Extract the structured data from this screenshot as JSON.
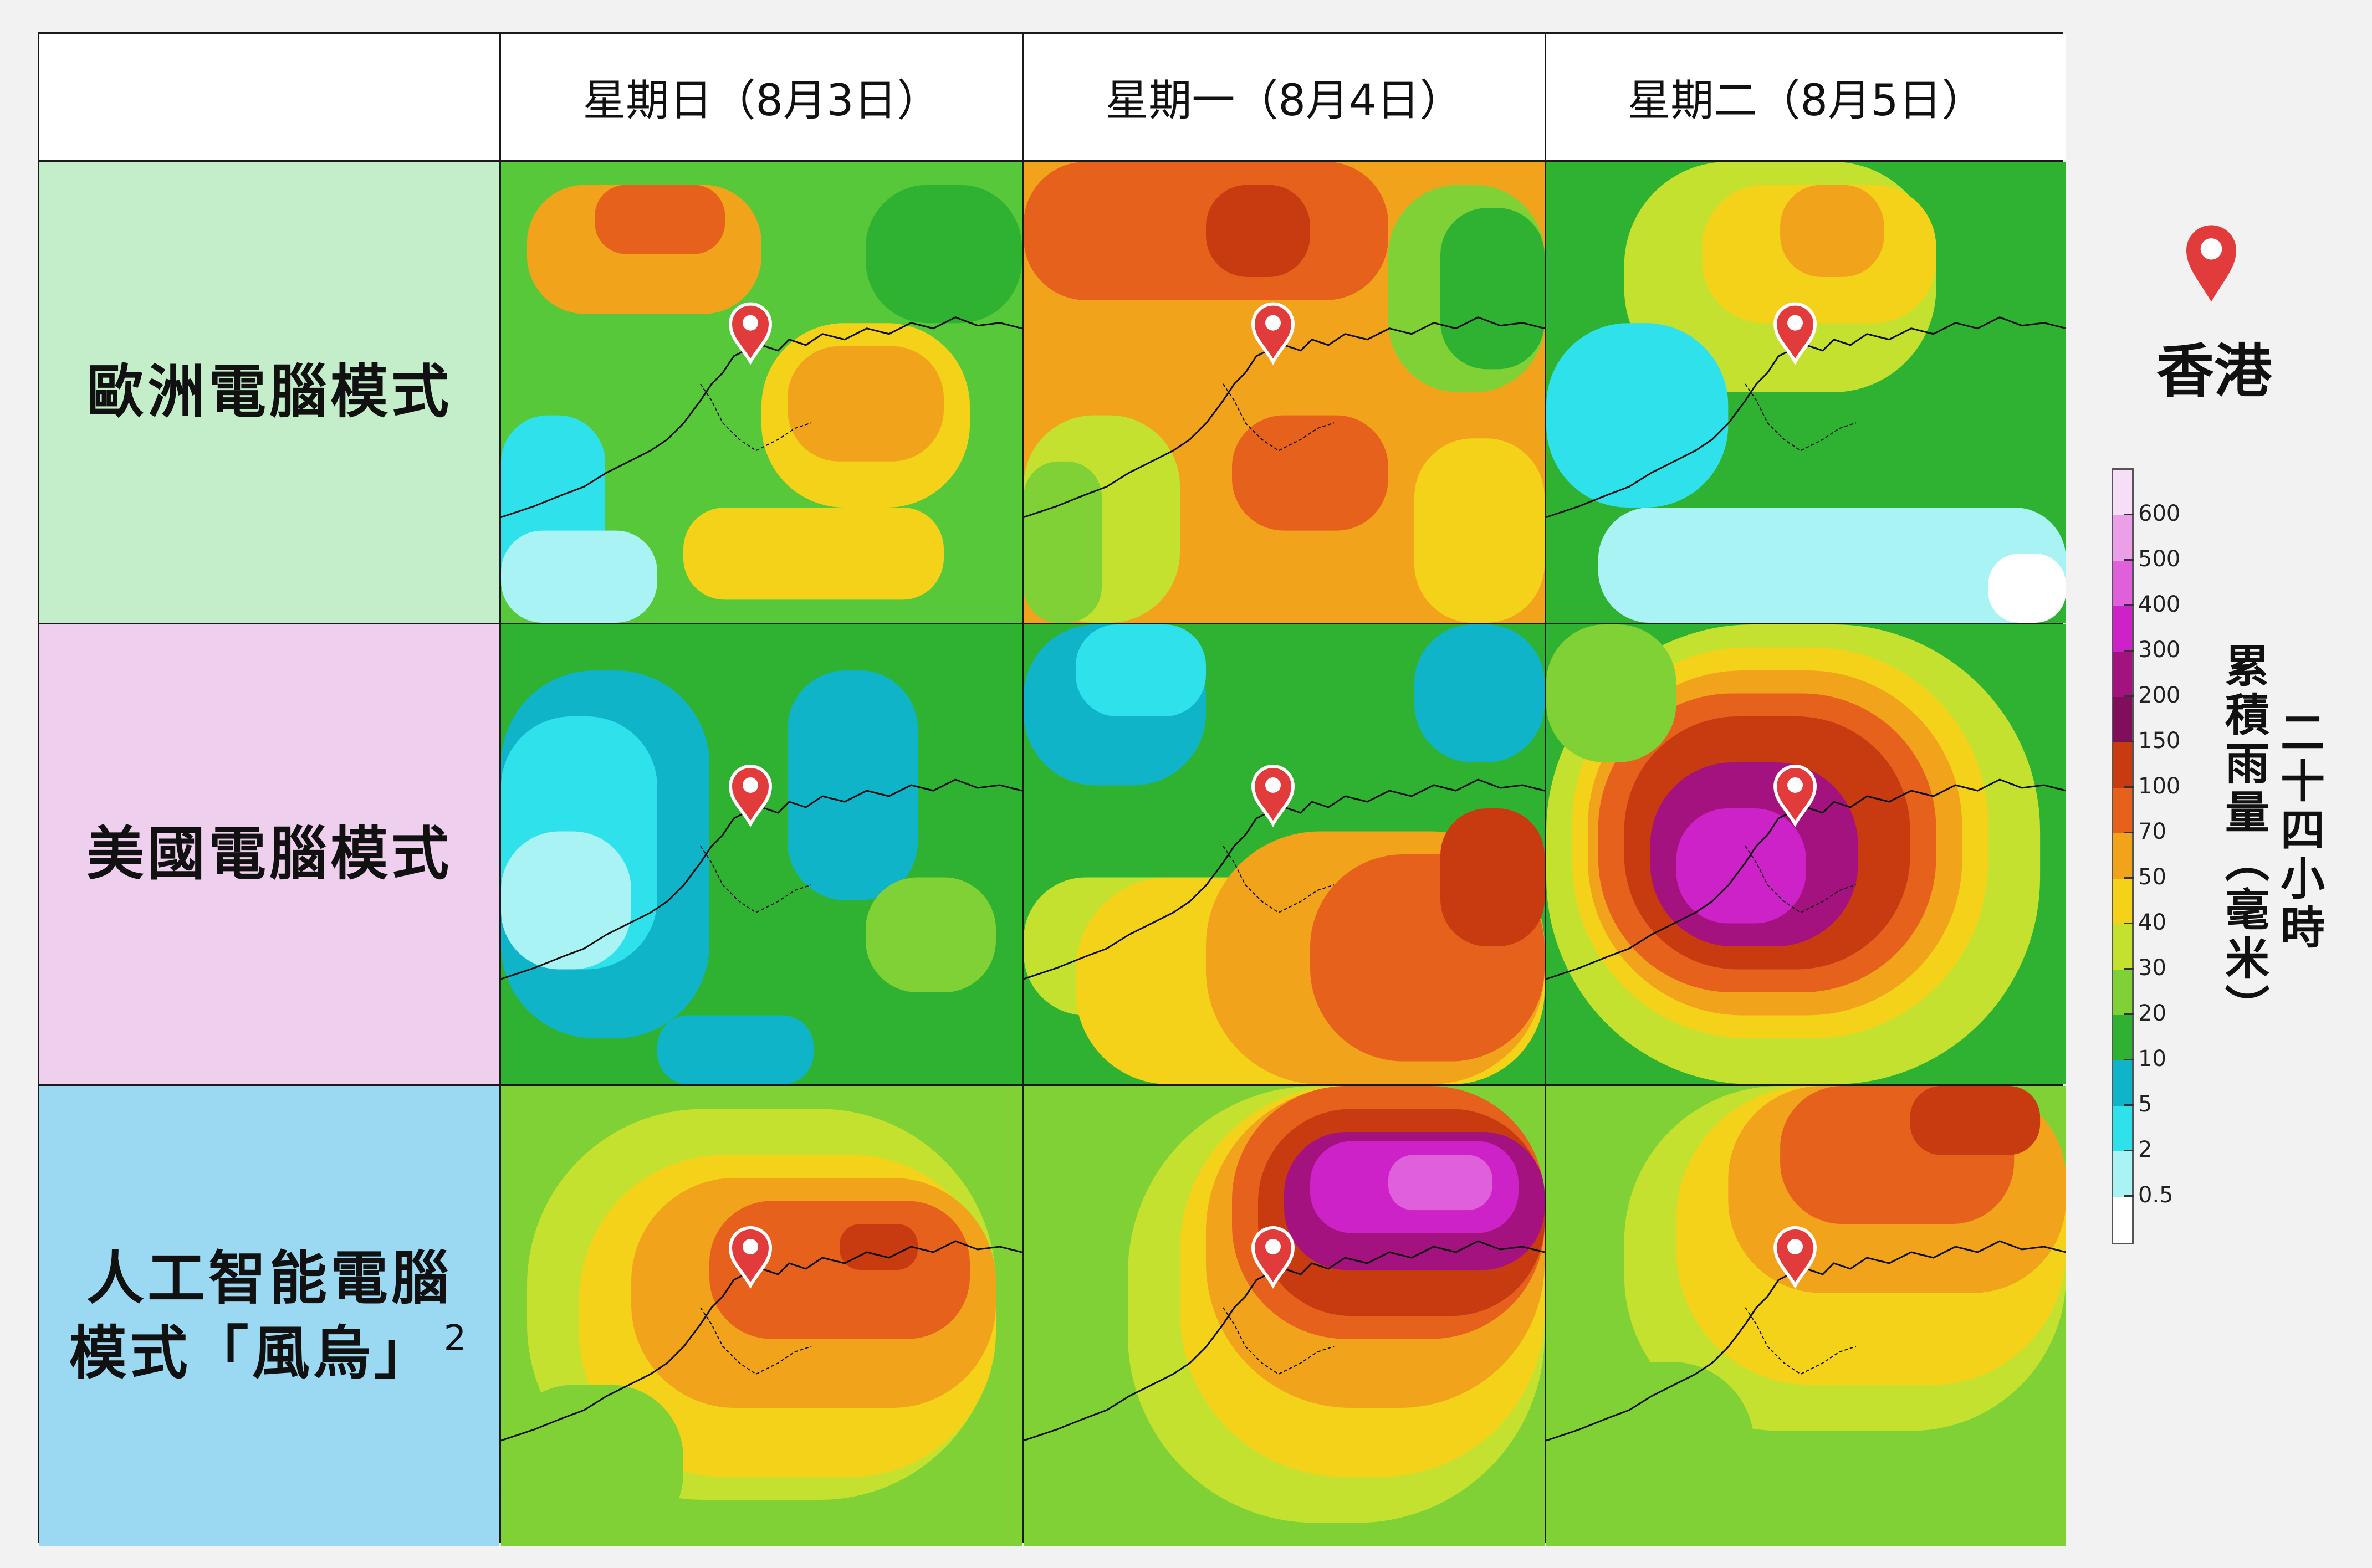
{
  "columns": [
    {
      "label": "星期日（8月3日）"
    },
    {
      "label": "星期一（8月4日）"
    },
    {
      "label": "星期二（8月5日）"
    }
  ],
  "rows": [
    {
      "label": "歐洲電腦模式",
      "color": "#c4edca"
    },
    {
      "label": "美國電腦模式",
      "color": "#eed0ee"
    },
    {
      "label_line1": "人工智能電腦",
      "label_line2": "模式「風烏」",
      "sup": "2",
      "color": "#9bd8f2"
    }
  ],
  "legend": {
    "place": "香港",
    "marker_color": "#e23b3b",
    "title_col1": "累積雨量（毫米）",
    "title_col2": "二十四小時",
    "ticks": [
      "600",
      "500",
      "400",
      "300",
      "200",
      "150",
      "100",
      "70",
      "50",
      "40",
      "30",
      "20",
      "10",
      "5",
      "2",
      "0.5"
    ],
    "colors": [
      "#f6dff6",
      "#ec9fe9",
      "#e060dc",
      "#cc22c8",
      "#a3127f",
      "#7f0f5a",
      "#c83a10",
      "#e5611c",
      "#f2a31c",
      "#f5d21a",
      "#c5e130",
      "#7fd136",
      "#2fb232",
      "#10b4c8",
      "#2ee1ea",
      "#a9f3f4",
      "#ffffff"
    ]
  },
  "maps": [
    {
      "scheme": "ecmwf-sun",
      "bg": "#57c83a",
      "blobs": [
        {
          "c": "#f2a31c",
          "r": [
            0.05,
            0.05,
            0.45,
            0.28
          ]
        },
        {
          "c": "#e5611c",
          "r": [
            0.18,
            0.05,
            0.25,
            0.15
          ]
        },
        {
          "c": "#f5d21a",
          "r": [
            0.5,
            0.35,
            0.4,
            0.4
          ]
        },
        {
          "c": "#f2a31c",
          "r": [
            0.55,
            0.4,
            0.3,
            0.25
          ]
        },
        {
          "c": "#2fb232",
          "r": [
            0.7,
            0.05,
            0.3,
            0.3
          ]
        },
        {
          "c": "#2ee1ea",
          "r": [
            0.0,
            0.55,
            0.2,
            0.45
          ]
        },
        {
          "c": "#a9f3f4",
          "r": [
            0.0,
            0.8,
            0.3,
            0.2
          ]
        },
        {
          "c": "#f5d21a",
          "r": [
            0.35,
            0.75,
            0.5,
            0.2
          ]
        }
      ]
    },
    {
      "scheme": "ecmwf-mon",
      "bg": "#f2a31c",
      "blobs": [
        {
          "c": "#e5611c",
          "r": [
            0.0,
            0.0,
            0.7,
            0.3
          ]
        },
        {
          "c": "#c83a10",
          "r": [
            0.35,
            0.05,
            0.2,
            0.2
          ]
        },
        {
          "c": "#7fd136",
          "r": [
            0.7,
            0.05,
            0.3,
            0.45
          ]
        },
        {
          "c": "#2fb232",
          "r": [
            0.8,
            0.1,
            0.2,
            0.35
          ]
        },
        {
          "c": "#c5e130",
          "r": [
            0.0,
            0.55,
            0.3,
            0.45
          ]
        },
        {
          "c": "#7fd136",
          "r": [
            0.0,
            0.65,
            0.15,
            0.35
          ]
        },
        {
          "c": "#e5611c",
          "r": [
            0.4,
            0.55,
            0.3,
            0.25
          ]
        },
        {
          "c": "#f5d21a",
          "r": [
            0.75,
            0.6,
            0.25,
            0.4
          ]
        }
      ]
    },
    {
      "scheme": "ecmwf-tue",
      "bg": "#2fb232",
      "blobs": [
        {
          "c": "#c5e130",
          "r": [
            0.15,
            0.0,
            0.6,
            0.5
          ]
        },
        {
          "c": "#f5d21a",
          "r": [
            0.3,
            0.05,
            0.45,
            0.3
          ]
        },
        {
          "c": "#f2a31c",
          "r": [
            0.45,
            0.05,
            0.2,
            0.2
          ]
        },
        {
          "c": "#2ee1ea",
          "r": [
            0.0,
            0.35,
            0.35,
            0.4
          ]
        },
        {
          "c": "#a9f3f4",
          "r": [
            0.1,
            0.75,
            0.9,
            0.25
          ]
        },
        {
          "c": "#ffffff",
          "r": [
            0.85,
            0.85,
            0.15,
            0.15
          ]
        }
      ]
    },
    {
      "scheme": "gfs-sun",
      "bg": "#2fb232",
      "blobs": [
        {
          "c": "#10b4c8",
          "r": [
            0.0,
            0.1,
            0.4,
            0.8
          ]
        },
        {
          "c": "#2ee1ea",
          "r": [
            0.0,
            0.2,
            0.3,
            0.55
          ]
        },
        {
          "c": "#a9f3f4",
          "r": [
            0.0,
            0.45,
            0.25,
            0.3
          ]
        },
        {
          "c": "#10b4c8",
          "r": [
            0.55,
            0.1,
            0.25,
            0.5
          ]
        },
        {
          "c": "#7fd136",
          "r": [
            0.7,
            0.55,
            0.25,
            0.25
          ]
        },
        {
          "c": "#10b4c8",
          "r": [
            0.3,
            0.85,
            0.3,
            0.15
          ]
        }
      ]
    },
    {
      "scheme": "gfs-mon",
      "bg": "#2fb232",
      "blobs": [
        {
          "c": "#10b4c8",
          "r": [
            0.0,
            0.0,
            0.35,
            0.35
          ]
        },
        {
          "c": "#2ee1ea",
          "r": [
            0.1,
            0.0,
            0.25,
            0.2
          ]
        },
        {
          "c": "#10b4c8",
          "r": [
            0.75,
            0.0,
            0.25,
            0.3
          ]
        },
        {
          "c": "#c5e130",
          "r": [
            0.0,
            0.55,
            0.6,
            0.3
          ]
        },
        {
          "c": "#f5d21a",
          "r": [
            0.1,
            0.55,
            0.9,
            0.45
          ]
        },
        {
          "c": "#f2a31c",
          "r": [
            0.35,
            0.45,
            0.65,
            0.55
          ]
        },
        {
          "c": "#e5611c",
          "r": [
            0.55,
            0.5,
            0.45,
            0.45
          ]
        },
        {
          "c": "#c83a10",
          "r": [
            0.8,
            0.4,
            0.2,
            0.3
          ]
        }
      ]
    },
    {
      "scheme": "gfs-tue",
      "bg": "#2fb232",
      "blobs": [
        {
          "c": "#c5e130",
          "r": [
            0.0,
            0.0,
            0.95,
            1.0
          ]
        },
        {
          "c": "#f5d21a",
          "r": [
            0.05,
            0.05,
            0.8,
            0.85
          ]
        },
        {
          "c": "#f2a31c",
          "r": [
            0.08,
            0.1,
            0.72,
            0.75
          ]
        },
        {
          "c": "#e5611c",
          "r": [
            0.1,
            0.15,
            0.65,
            0.65
          ]
        },
        {
          "c": "#c83a10",
          "r": [
            0.15,
            0.2,
            0.55,
            0.55
          ]
        },
        {
          "c": "#a3127f",
          "r": [
            0.2,
            0.3,
            0.4,
            0.4
          ]
        },
        {
          "c": "#cc22c8",
          "r": [
            0.25,
            0.4,
            0.25,
            0.25
          ]
        },
        {
          "c": "#7fd136",
          "r": [
            0.0,
            0.0,
            0.25,
            0.3
          ]
        }
      ]
    },
    {
      "scheme": "ai-sun",
      "bg": "#7fd136",
      "blobs": [
        {
          "c": "#c5e130",
          "r": [
            0.05,
            0.05,
            0.9,
            0.85
          ]
        },
        {
          "c": "#f5d21a",
          "r": [
            0.15,
            0.15,
            0.8,
            0.7
          ]
        },
        {
          "c": "#f2a31c",
          "r": [
            0.25,
            0.2,
            0.7,
            0.5
          ]
        },
        {
          "c": "#e5611c",
          "r": [
            0.4,
            0.25,
            0.5,
            0.3
          ]
        },
        {
          "c": "#c83a10",
          "r": [
            0.65,
            0.3,
            0.15,
            0.1
          ]
        },
        {
          "c": "#7fd136",
          "r": [
            0.0,
            0.65,
            0.35,
            0.35
          ]
        }
      ]
    },
    {
      "scheme": "ai-mon",
      "bg": "#7fd136",
      "blobs": [
        {
          "c": "#c5e130",
          "r": [
            0.2,
            0.0,
            0.8,
            0.95
          ]
        },
        {
          "c": "#f5d21a",
          "r": [
            0.3,
            0.0,
            0.7,
            0.85
          ]
        },
        {
          "c": "#f2a31c",
          "r": [
            0.35,
            0.0,
            0.65,
            0.7
          ]
        },
        {
          "c": "#e5611c",
          "r": [
            0.4,
            0.0,
            0.6,
            0.55
          ]
        },
        {
          "c": "#c83a10",
          "r": [
            0.45,
            0.05,
            0.55,
            0.45
          ]
        },
        {
          "c": "#a3127f",
          "r": [
            0.5,
            0.1,
            0.5,
            0.3
          ]
        },
        {
          "c": "#cc22c8",
          "r": [
            0.55,
            0.12,
            0.4,
            0.2
          ]
        },
        {
          "c": "#e060dc",
          "r": [
            0.7,
            0.15,
            0.2,
            0.12
          ]
        }
      ]
    },
    {
      "scheme": "ai-tue",
      "bg": "#7fd136",
      "blobs": [
        {
          "c": "#c5e130",
          "r": [
            0.15,
            0.0,
            0.85,
            0.75
          ]
        },
        {
          "c": "#f5d21a",
          "r": [
            0.25,
            0.0,
            0.75,
            0.65
          ]
        },
        {
          "c": "#f2a31c",
          "r": [
            0.35,
            0.0,
            0.65,
            0.45
          ]
        },
        {
          "c": "#e5611c",
          "r": [
            0.45,
            0.0,
            0.45,
            0.3
          ]
        },
        {
          "c": "#c83a10",
          "r": [
            0.7,
            0.0,
            0.25,
            0.15
          ]
        },
        {
          "c": "#7fd136",
          "r": [
            0.0,
            0.6,
            0.4,
            0.4
          ]
        }
      ]
    }
  ]
}
